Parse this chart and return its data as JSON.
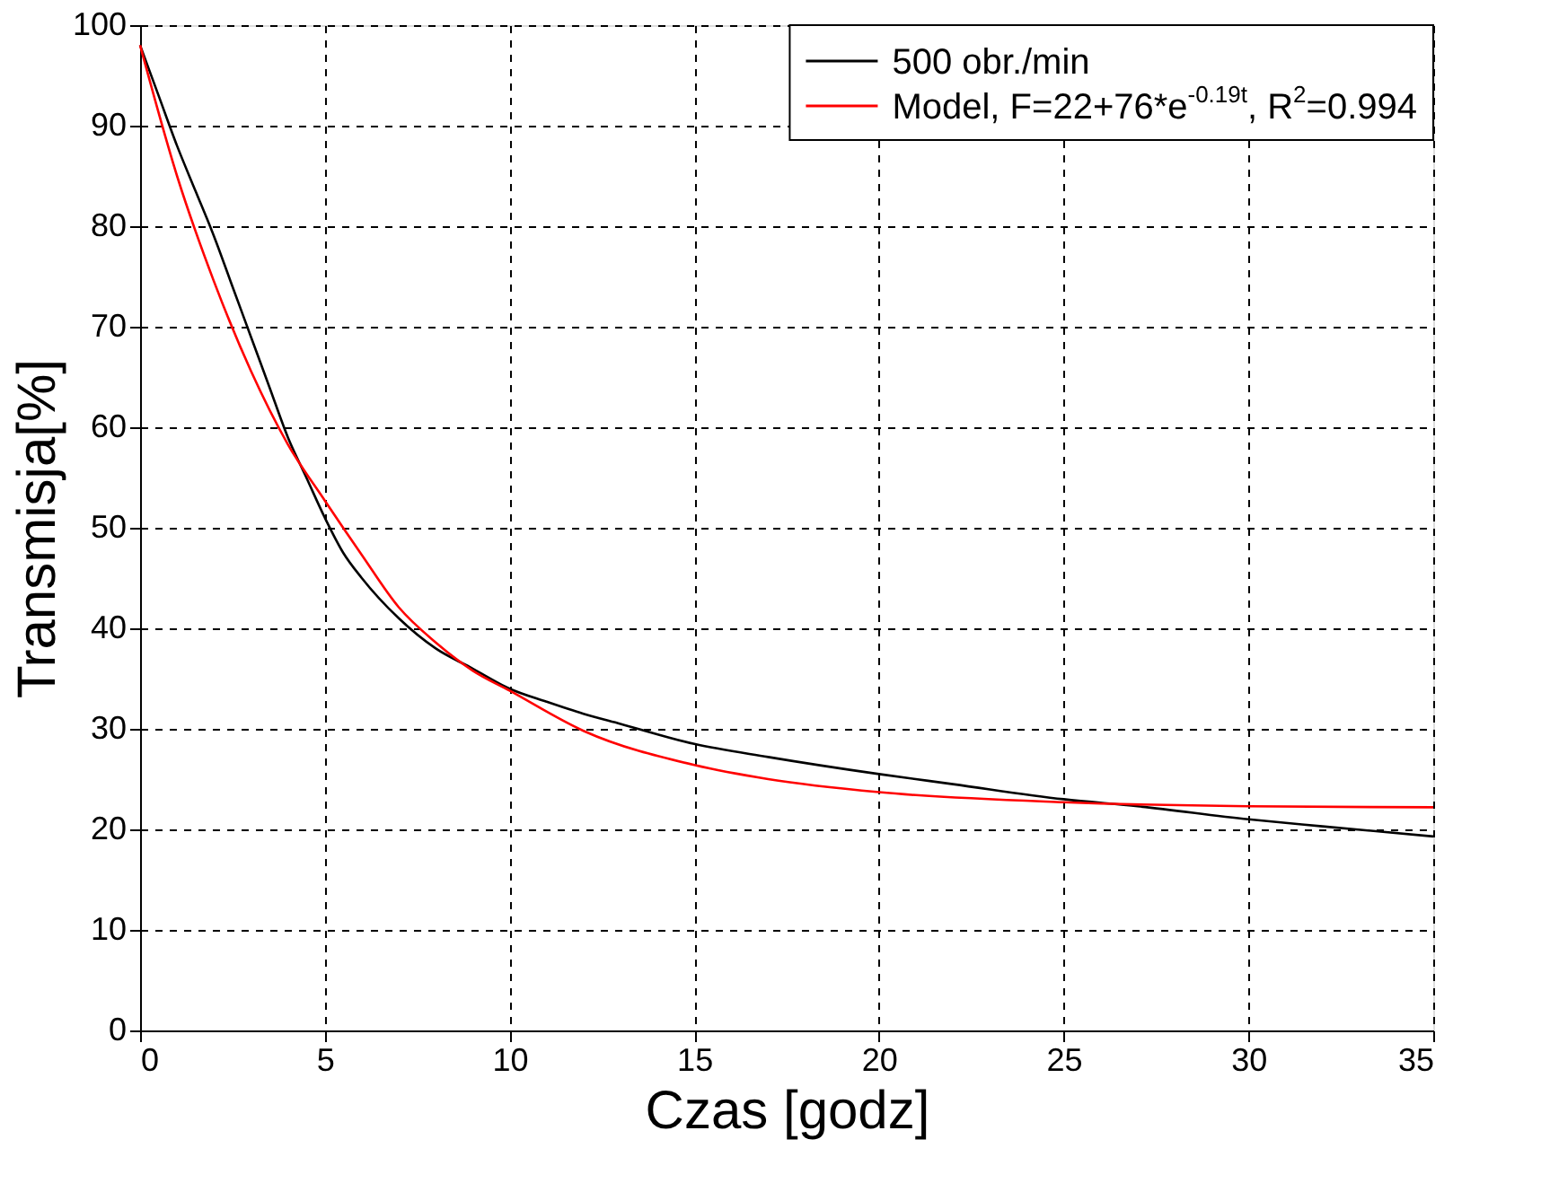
{
  "chart_data": {
    "type": "line",
    "xlabel": "Czas [godz]",
    "ylabel": "Transmisja[%]",
    "xlim": [
      0,
      35
    ],
    "xticks": [
      0,
      5,
      10,
      15,
      20,
      25,
      30,
      35
    ],
    "ylim": [
      0,
      100
    ],
    "yticks": [
      0,
      10,
      20,
      30,
      40,
      50,
      60,
      70,
      80,
      90,
      100
    ],
    "grid": true,
    "legend": "top right",
    "line_style": "solid",
    "marker": "none",
    "series": [
      {
        "name": "500  obr./min",
        "color": "#000000",
        "x": [
          0,
          0.5,
          1,
          1.5,
          2,
          2.5,
          3,
          3.5,
          4,
          4.5,
          5,
          5.5,
          6,
          7,
          8,
          9,
          10,
          11,
          12,
          13,
          15,
          17,
          20,
          22,
          25,
          27,
          30,
          32,
          35
        ],
        "values": [
          98,
          93,
          88,
          83.5,
          79,
          74,
          69,
          64,
          59,
          55,
          51,
          47.5,
          45,
          41,
          38,
          36,
          34,
          32.7,
          31.5,
          30.5,
          28.5,
          27.2,
          25.5,
          24.5,
          23,
          22.3,
          21,
          20.3,
          19.3
        ]
      },
      {
        "name": "Model, F=22+76*e$^{-0.19t}$, R$^{2}$=0.994",
        "color": "#ff0000",
        "x": [
          0,
          1,
          2,
          3,
          4,
          5,
          6,
          7,
          8,
          9,
          10,
          12,
          15,
          17,
          20,
          25,
          30,
          35
        ],
        "values": [
          98,
          85,
          74.5,
          65.6,
          58.3,
          52.7,
          47.3,
          42.1,
          38.6,
          35.8,
          33.8,
          29.8,
          26.4,
          25,
          23.7,
          22.7,
          22.3,
          22.2
        ]
      }
    ]
  }
}
